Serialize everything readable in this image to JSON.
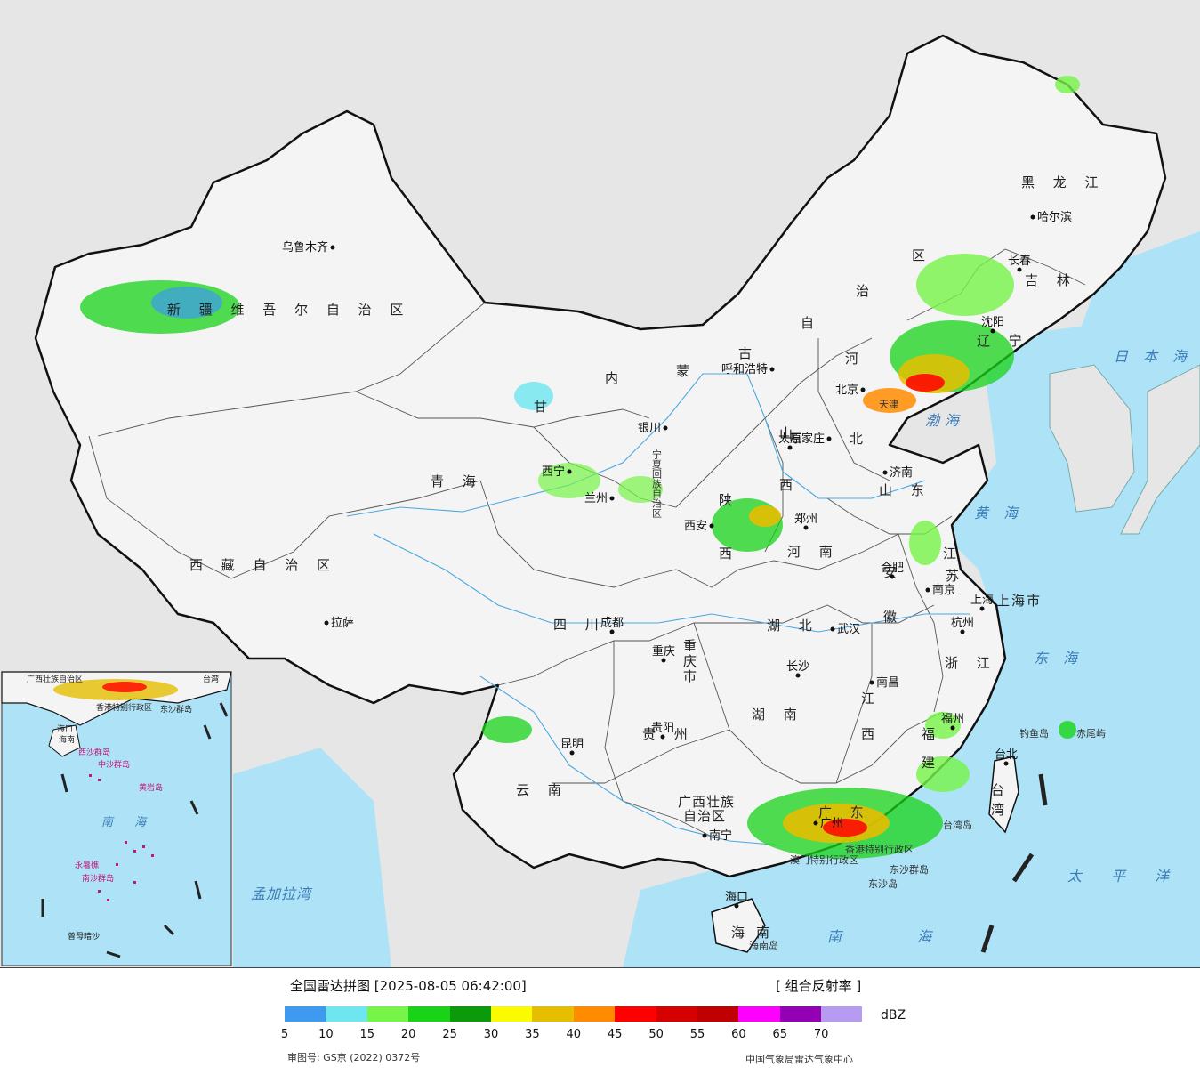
{
  "legend": {
    "title": "全国雷达拼图 [2025-08-05 06:42:00]",
    "product": "[ 组合反射率 ]",
    "unit": "dBZ",
    "approval": "审图号: GS京 (2022) 0372号",
    "source": "中国气象局雷达气象中心",
    "ticks": [
      "5",
      "10",
      "15",
      "20",
      "25",
      "30",
      "35",
      "40",
      "45",
      "50",
      "55",
      "60",
      "65",
      "70"
    ],
    "colors": [
      "#3d9af0",
      "#6ee6ef",
      "#76f447",
      "#18d318",
      "#0a9a0a",
      "#fbfb00",
      "#e6be00",
      "#ff8c00",
      "#ff0000",
      "#d60000",
      "#c00000",
      "#ff00ff",
      "#9400b4",
      "#b59cf0"
    ]
  },
  "provinces": {
    "xinjiang": "新 疆 维 吾 尔 自 治 区",
    "xizang": "西 藏 自 治 区",
    "qinghai": "青 海",
    "gansu": "甘",
    "neimenggu_1": "内",
    "neimenggu_2": "蒙",
    "neimenggu_3": "古",
    "neimenggu_4": "自",
    "neimenggu_5": "治",
    "neimenggu_6": "区",
    "heilongjiang": "黑 龙 江",
    "jilin": "吉 林",
    "liaoning": "辽 宁",
    "hebei_1": "河",
    "hebei_2": "北",
    "tianjin": "天津",
    "shanxi_1": "山",
    "shanxi_2": "西",
    "shandong": "山 东",
    "henan": "河 南",
    "shaanxi_1": "陕",
    "shaanxi_2": "西",
    "ningxia": "宁夏回族自治区",
    "sichuan": "四 川",
    "chongqing": "重庆市",
    "hubei": "湖 北",
    "anhui_1": "安",
    "anhui_2": "徽",
    "jiangsu_1": "江",
    "jiangsu_2": "苏",
    "shanghai": "上海市",
    "zhejiang": "浙 江",
    "jiangxi_1": "江",
    "jiangxi_2": "西",
    "hunan": "湖 南",
    "guizhou": "贵 州",
    "yunnan": "云 南",
    "guangxi_1": "广西壮族",
    "guangxi_2": "自治区",
    "guangdong": "广 东",
    "fujian_1": "福",
    "fujian_2": "建",
    "taiwan_1": "台",
    "taiwan_2": "湾",
    "hainan_1": "海",
    "hainan_2": "南",
    "hk": "香港特别行政区",
    "macau": "澳门特别行政区"
  },
  "cities": [
    {
      "id": "urumqi",
      "name": "乌鲁木齐"
    },
    {
      "id": "lhasa",
      "name": "拉萨"
    },
    {
      "id": "xining",
      "name": "西宁"
    },
    {
      "id": "lanzhou",
      "name": "兰州"
    },
    {
      "id": "yinchuan",
      "name": "银川"
    },
    {
      "id": "hohhot",
      "name": "呼和浩特"
    },
    {
      "id": "beijing",
      "name": "北京"
    },
    {
      "id": "shijiazhuang",
      "name": "石家庄"
    },
    {
      "id": "taiyuan",
      "name": "太原"
    },
    {
      "id": "jinan",
      "name": "济南"
    },
    {
      "id": "zhengzhou",
      "name": "郑州"
    },
    {
      "id": "xian",
      "name": "西安"
    },
    {
      "id": "chengdu",
      "name": "成都"
    },
    {
      "id": "chongqing",
      "name": "重庆"
    },
    {
      "id": "wuhan",
      "name": "武汉"
    },
    {
      "id": "hefei",
      "name": "合肥"
    },
    {
      "id": "nanjing",
      "name": "南京"
    },
    {
      "id": "shanghai",
      "name": "上海"
    },
    {
      "id": "hangzhou",
      "name": "杭州"
    },
    {
      "id": "nanchang",
      "name": "南昌"
    },
    {
      "id": "changsha",
      "name": "长沙"
    },
    {
      "id": "guiyang",
      "name": "贵阳"
    },
    {
      "id": "kunming",
      "name": "昆明"
    },
    {
      "id": "nanning",
      "name": "南宁"
    },
    {
      "id": "guangzhou",
      "name": "广州"
    },
    {
      "id": "fuzhou",
      "name": "福州"
    },
    {
      "id": "taibei",
      "name": "台北"
    },
    {
      "id": "haikou",
      "name": "海口"
    },
    {
      "id": "harbin",
      "name": "哈尔滨"
    },
    {
      "id": "changchun",
      "name": "长春"
    },
    {
      "id": "shenyang",
      "name": "沈阳"
    }
  ],
  "seas": {
    "japan": "日 本 海",
    "bohai": "渤海",
    "yellow": "黄 海",
    "east": "东 海",
    "pacific": "太 平 洋",
    "south": "南 海",
    "bengal": "孟加拉湾",
    "inset_south": "南 海"
  },
  "islands": {
    "diaoyu": "钓鱼岛",
    "chiwei": "赤尾屿",
    "taiwan_isl": "台湾岛",
    "dongsha_qd": "东沙群岛",
    "dongsha": "东沙岛",
    "hainan_isl": "海南岛",
    "inset_haikou": "海口",
    "inset_hainan": "海南",
    "inset_xisha": "西沙群岛",
    "inset_zhongsha": "中沙群岛",
    "inset_huangyan": "黄岩岛",
    "inset_nansha": "南沙群岛",
    "inset_yongshu": "永暑礁",
    "inset_zengmu": "曾母暗沙",
    "inset_hk": "香港特别行政区",
    "inset_dongsha": "东沙群岛",
    "inset_gx": "广西壮族自治区",
    "inset_taiwan": "台湾"
  }
}
